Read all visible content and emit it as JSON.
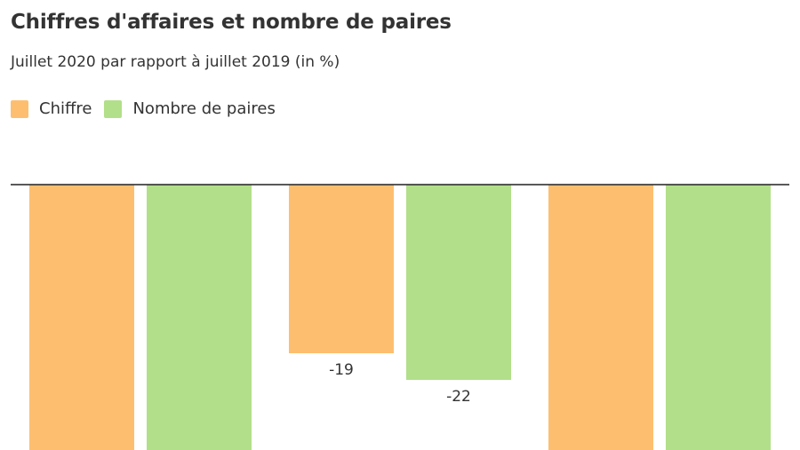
{
  "chart_data": {
    "type": "bar",
    "title": "Chiffres d'affaires et nombre de paires",
    "subtitle": "Juillet 2020 par rapport à juillet 2019 (in %)",
    "categories": [
      "",
      "",
      ""
    ],
    "series": [
      {
        "name": "Chiffre",
        "color": "#fdbf6f",
        "values": [
          -30,
          -19,
          -30
        ]
      },
      {
        "name": "Nombre de paires",
        "color": "#b2df8a",
        "values": [
          -30,
          -22,
          -30
        ]
      }
    ],
    "data_labels": [
      {
        "series": 0,
        "category": 1,
        "text": "-19"
      },
      {
        "series": 1,
        "category": 1,
        "text": "-22"
      }
    ],
    "ylim": [
      -30,
      0
    ],
    "grid": false,
    "legend": "top-left"
  }
}
